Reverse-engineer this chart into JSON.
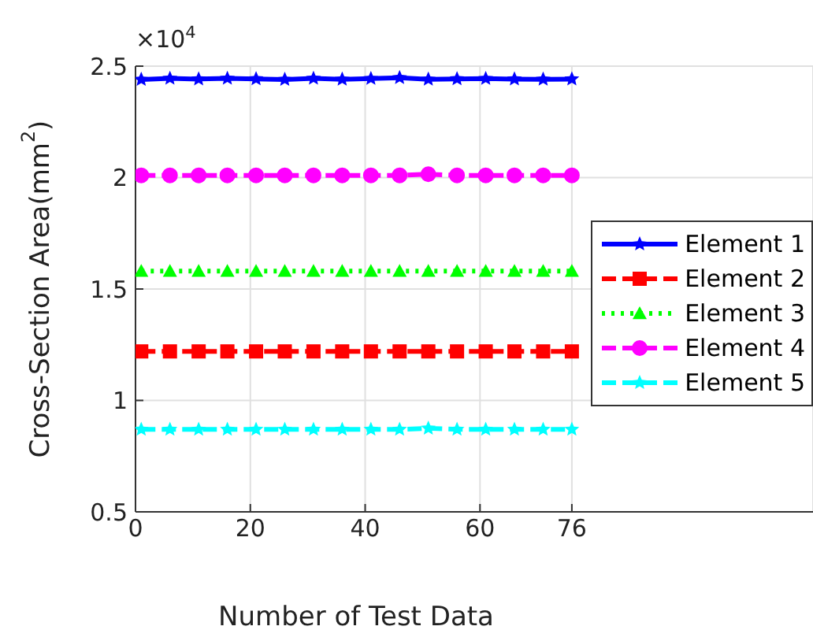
{
  "chart_data": {
    "type": "line",
    "xlabel": "Number of Test Data",
    "ylabel": "Cross-Section Area(mm$^{2}$)",
    "annotations": [
      "×10$^{4}$"
    ],
    "x": [
      1,
      6,
      11,
      16,
      21,
      26,
      31,
      36,
      41,
      46,
      51,
      56,
      61,
      66,
      71,
      76
    ],
    "xlim": [
      0,
      118
    ],
    "xticks": [
      0,
      20,
      40,
      60,
      76
    ],
    "ylim": [
      0.5,
      2.5
    ],
    "yticks": [
      0.5,
      1,
      1.5,
      2,
      2.5
    ],
    "grid": true,
    "legend": "right",
    "series": [
      {
        "name": "Element 1",
        "color": "#0000ff",
        "marker": "star",
        "line_style": "solid",
        "values": [
          2.44,
          2.445,
          2.442,
          2.445,
          2.443,
          2.44,
          2.445,
          2.441,
          2.444,
          2.448,
          2.441,
          2.443,
          2.444,
          2.442,
          2.441,
          2.442
        ]
      },
      {
        "name": "Element 2",
        "color": "#ff0000",
        "marker": "square",
        "line_style": "dashed",
        "values": [
          1.22,
          1.22,
          1.22,
          1.22,
          1.22,
          1.22,
          1.22,
          1.22,
          1.22,
          1.22,
          1.22,
          1.22,
          1.22,
          1.22,
          1.22,
          1.22
        ]
      },
      {
        "name": "Element 3",
        "color": "#00ff00",
        "marker": "triangle",
        "line_style": "dotted",
        "values": [
          1.58,
          1.58,
          1.58,
          1.58,
          1.58,
          1.58,
          1.58,
          1.58,
          1.58,
          1.58,
          1.58,
          1.58,
          1.58,
          1.58,
          1.58,
          1.58
        ]
      },
      {
        "name": "Element 4",
        "color": "#ff00ff",
        "marker": "circle",
        "line_style": "dashed",
        "values": [
          2.01,
          2.01,
          2.01,
          2.01,
          2.01,
          2.01,
          2.01,
          2.01,
          2.01,
          2.01,
          2.015,
          2.01,
          2.01,
          2.01,
          2.01,
          2.01
        ]
      },
      {
        "name": "Element 5",
        "color": "#00ffff",
        "marker": "star",
        "line_style": "dashed",
        "values": [
          0.87,
          0.87,
          0.87,
          0.87,
          0.87,
          0.87,
          0.87,
          0.87,
          0.87,
          0.87,
          0.875,
          0.87,
          0.87,
          0.87,
          0.87,
          0.87
        ]
      }
    ]
  }
}
